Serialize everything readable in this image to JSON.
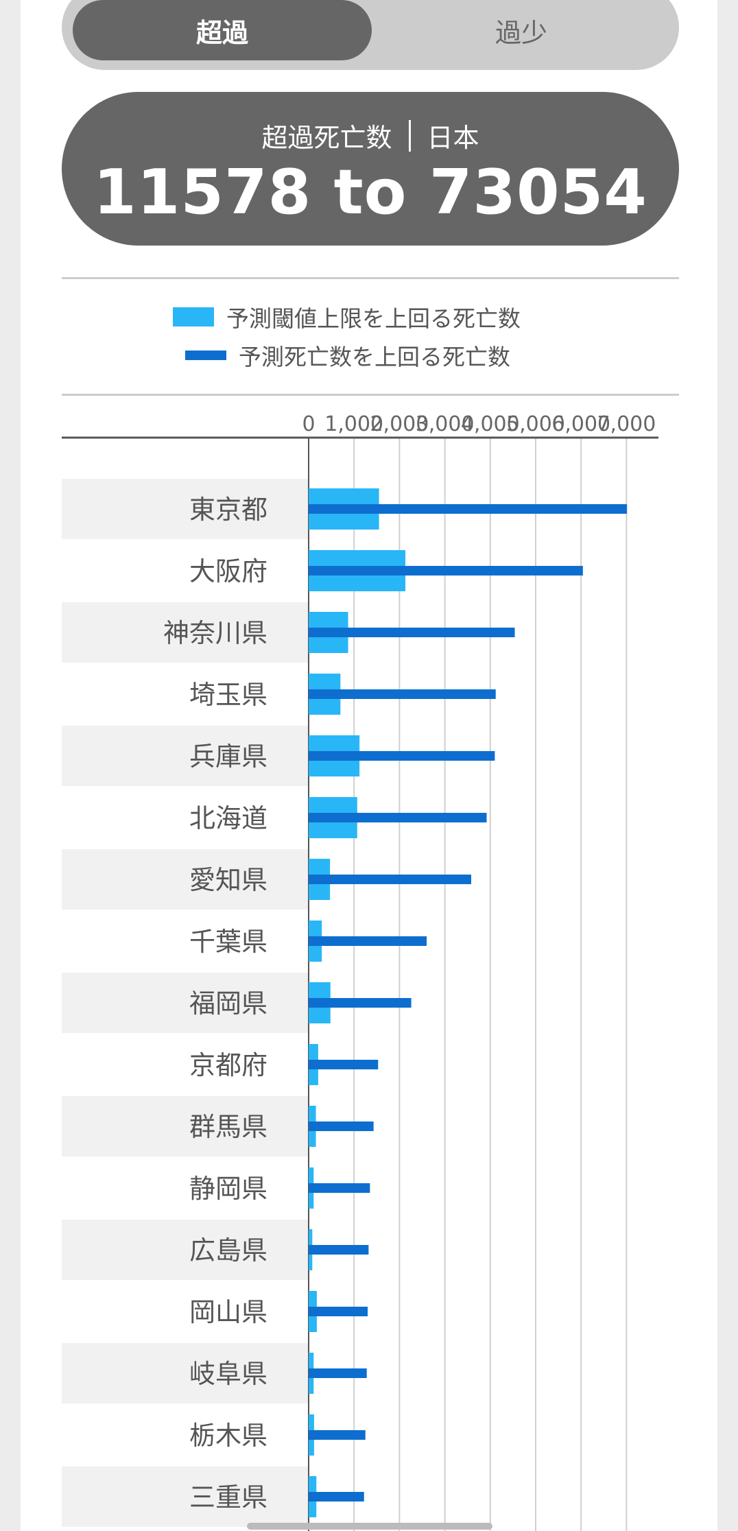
{
  "toggle": {
    "excess_label": "超過",
    "deficit_label": "過少"
  },
  "summary": {
    "label": "超過死亡数",
    "region": "日本",
    "value": "11578 to 73054"
  },
  "legend": {
    "upper_label": "予測閾値上限を上回る死亡数",
    "predicted_label": "予測死亡数を上回る死亡数"
  },
  "colors": {
    "upper_bar": "#29b6f6",
    "predicted_bar": "#0d6ecf",
    "row_band": "#f1f1f1"
  },
  "chart_data": {
    "type": "bar",
    "orientation": "horizontal",
    "xlim": [
      0,
      7000
    ],
    "ticks": [
      "0",
      "1,000",
      "2,000",
      "3,000",
      "4,000",
      "5,000",
      "6,000",
      "7,000"
    ],
    "grid": true,
    "categories": [
      "東京都",
      "大阪府",
      "神奈川県",
      "埼玉県",
      "兵庫県",
      "北海道",
      "愛知県",
      "千葉県",
      "福岡県",
      "京都府",
      "群馬県",
      "静岡県",
      "広島県",
      "岡山県",
      "岐阜県",
      "栃木県",
      "三重県"
    ],
    "series": [
      {
        "name": "予測閾値上限を上回る死亡数",
        "values": [
          1550,
          2130,
          870,
          700,
          1120,
          1070,
          470,
          290,
          480,
          210,
          160,
          110,
          80,
          180,
          110,
          120,
          170
        ]
      },
      {
        "name": "予測死亡数を上回る死亡数",
        "values": [
          7010,
          6040,
          4540,
          4120,
          4100,
          3920,
          3580,
          2600,
          2260,
          1530,
          1430,
          1350,
          1320,
          1300,
          1280,
          1250,
          1220
        ]
      }
    ]
  }
}
